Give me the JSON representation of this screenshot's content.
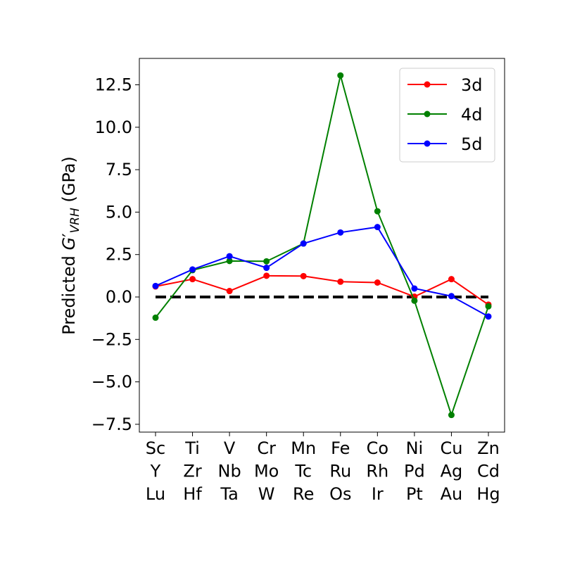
{
  "chart_data": {
    "type": "line",
    "ylabel": {
      "main": "Predicted ",
      "symbol": "G",
      "prime": "′",
      "sub": "VRH",
      "unit": " (GPa)"
    },
    "ylim": [
      -8,
      14
    ],
    "yticks": [
      {
        "value": 12.5,
        "label": "12.5"
      },
      {
        "value": 10.0,
        "label": "10.0"
      },
      {
        "value": 7.5,
        "label": "7.5"
      },
      {
        "value": 5.0,
        "label": "5.0"
      },
      {
        "value": 2.5,
        "label": "2.5"
      },
      {
        "value": 0.0,
        "label": "0.0"
      },
      {
        "value": -2.5,
        "label": "−2.5"
      },
      {
        "value": -5.0,
        "label": "−5.0"
      },
      {
        "value": -7.5,
        "label": "−7.5"
      }
    ],
    "categories": [
      [
        "Sc",
        "Y",
        "Lu"
      ],
      [
        "Ti",
        "Zr",
        "Hf"
      ],
      [
        "V",
        "Nb",
        "Ta"
      ],
      [
        "Cr",
        "Mo",
        "W"
      ],
      [
        "Mn",
        "Tc",
        "Re"
      ],
      [
        "Fe",
        "Ru",
        "Os"
      ],
      [
        "Co",
        "Rh",
        "Ir"
      ],
      [
        "Ni",
        "Pd",
        "Pt"
      ],
      [
        "Cu",
        "Ag",
        "Au"
      ],
      [
        "Zn",
        "Cd",
        "Hg"
      ]
    ],
    "series": [
      {
        "name": "3d",
        "color": "#ff0000",
        "values": [
          0.62,
          1.05,
          0.35,
          1.25,
          1.23,
          0.9,
          0.85,
          0.02,
          1.05,
          -0.45
        ]
      },
      {
        "name": "4d",
        "color": "#008000",
        "values": [
          -1.22,
          1.58,
          2.12,
          2.1,
          3.15,
          13.05,
          5.05,
          -0.22,
          -6.95,
          -0.55
        ]
      },
      {
        "name": "5d",
        "color": "#0000ff",
        "values": [
          0.65,
          1.62,
          2.4,
          1.72,
          3.15,
          3.8,
          4.12,
          0.5,
          0.05,
          -1.15
        ]
      }
    ],
    "reference_line": {
      "value": 0,
      "color": "#000000",
      "style": "dashed"
    },
    "legend_position": "top-right",
    "grid": false
  }
}
